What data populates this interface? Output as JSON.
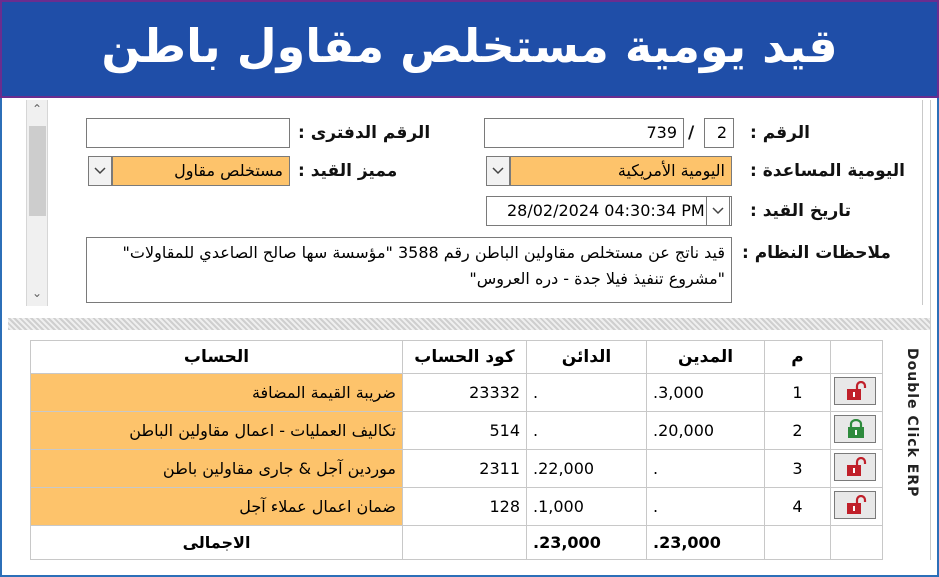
{
  "banner": {
    "title": "قيد يومية مستخلص مقاول باطن"
  },
  "form": {
    "number_label": "الرقم :",
    "number_prefix": "2",
    "number_separator": "/",
    "number_value": "739",
    "book_number_label": "الرقم الدفترى :",
    "book_number_value": "",
    "journal_label": "اليومية المساعدة :",
    "journal_value": "اليومية الأمريكية",
    "entry_type_label": "مميز القيد :",
    "entry_type_value": "مستخلص مقاول",
    "date_label": "تاريخ القيد :",
    "date_value": "28/02/2024 04:30:34 PM",
    "notes_label": "ملاحظات النظام :",
    "notes_value": "قيد ناتج عن مستخلص مقاولين الباطن رقم 3588 \"مؤسسة سها صالح الصاعدي للمقاولات\" \"مشروع تنفيذ فيلا جدة - دره العروس\""
  },
  "grid": {
    "headers": {
      "index": "م",
      "debit": "المدين",
      "credit": "الدائن",
      "code": "كود الحساب",
      "account": "الحساب"
    },
    "rows": [
      {
        "index": "1",
        "debit": "3,000.",
        "credit": ".",
        "code": "23332",
        "account": "ضريبة القيمة المضافة",
        "lock": "red"
      },
      {
        "index": "2",
        "debit": "20,000.",
        "credit": ".",
        "code": "514",
        "account": "تكاليف العمليات - اعمال مقاولين الباطن",
        "lock": "green"
      },
      {
        "index": "3",
        "debit": ".",
        "credit": "22,000.",
        "code": "2311",
        "account": "موردين آجل & جارى مقاولين باطن",
        "lock": "red"
      },
      {
        "index": "4",
        "debit": ".",
        "credit": "1,000.",
        "code": "128",
        "account": "ضمان اعمال عملاء آجل",
        "lock": "red"
      }
    ],
    "total": {
      "label": "الاجمالى",
      "debit": "23,000.",
      "credit": "23,000."
    }
  },
  "side_caption": "Double Click ERP",
  "colors": {
    "banner": "#1f4ea8",
    "highlight": "#fdc36b",
    "lock_red": "#c0202a",
    "lock_green": "#2e8b3d"
  }
}
